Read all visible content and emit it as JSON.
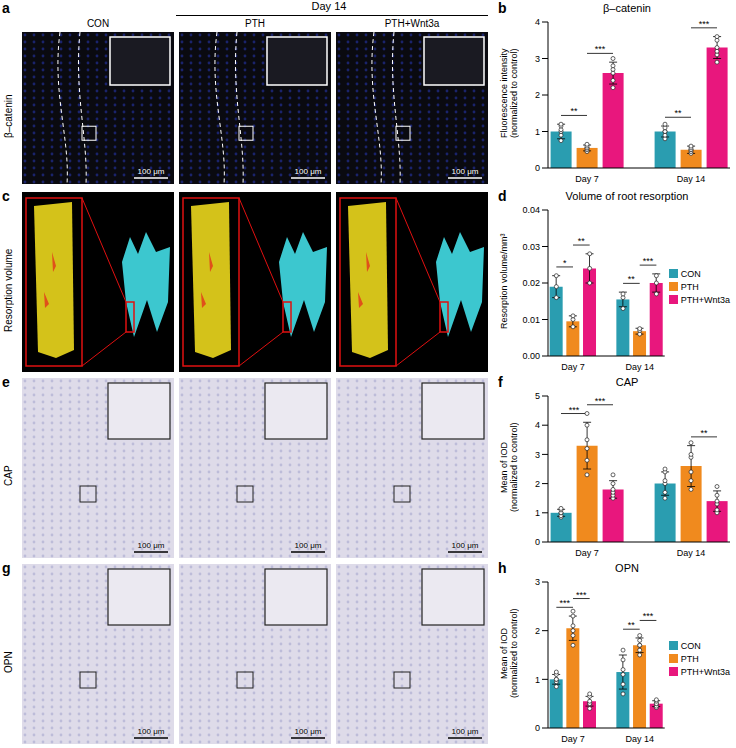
{
  "figure": {
    "panel_labels": [
      "a",
      "b",
      "c",
      "d",
      "e",
      "f",
      "g",
      "h"
    ],
    "header": "Day 14",
    "columns": [
      "CON",
      "PTH",
      "PTH+Wnt3a"
    ],
    "rows": [
      {
        "label": "β–catenin",
        "scale_bar": "100 μm"
      },
      {
        "label": "Resorption volume"
      },
      {
        "label": "CAP",
        "scale_bar": "100 μm"
      },
      {
        "label": "OPN",
        "scale_bar": "100 μm"
      }
    ]
  },
  "chart_data": [
    {
      "type": "bar",
      "title": "β–catenin",
      "y_label": "Fluorescence intensity\n(normalized to control)",
      "categories": [
        "Day 7",
        "Day 14"
      ],
      "ylim": [
        0,
        4
      ],
      "yticks": [
        0,
        1,
        2,
        3,
        4
      ],
      "series": [
        {
          "name": "CON",
          "color": "#2a9db0",
          "values": [
            1.0,
            1.0
          ],
          "errors": [
            0.2,
            0.15
          ],
          "points": [
            [
              0.75,
              0.9,
              1.0,
              1.05,
              1.15,
              1.2
            ],
            [
              0.8,
              0.9,
              1.0,
              1.0,
              1.1,
              1.2
            ]
          ]
        },
        {
          "name": "PTH",
          "color": "#f08a1e",
          "values": [
            0.55,
            0.5
          ],
          "errors": [
            0.08,
            0.1
          ],
          "points": [
            [
              0.45,
              0.5,
              0.55,
              0.55,
              0.6,
              0.65
            ],
            [
              0.4,
              0.45,
              0.5,
              0.5,
              0.55,
              0.6
            ]
          ]
        },
        {
          "name": "PTH+Wnt3a",
          "color": "#e8177d",
          "values": [
            2.6,
            3.3
          ],
          "errors": [
            0.3,
            0.3
          ],
          "points": [
            [
              2.2,
              2.4,
              2.6,
              2.7,
              2.8,
              3.0
            ],
            [
              2.9,
              3.1,
              3.2,
              3.3,
              3.5,
              3.6
            ]
          ]
        }
      ],
      "significance": [
        {
          "category": "Day 7",
          "from": "CON",
          "to": "PTH",
          "label": "**"
        },
        {
          "category": "Day 7",
          "from": "PTH",
          "to": "PTH+Wnt3a",
          "label": "***"
        },
        {
          "category": "Day 14",
          "from": "CON",
          "to": "PTH",
          "label": "**"
        },
        {
          "category": "Day 14",
          "from": "PTH",
          "to": "PTH+Wnt3a",
          "label": "***"
        }
      ]
    },
    {
      "type": "bar",
      "title": "Volume of root resorption",
      "y_label": "Resorption volume/mm³",
      "legend": "right",
      "categories": [
        "Day 7",
        "Day 14"
      ],
      "ylim": [
        0,
        0.04
      ],
      "yticks": [
        {
          "value": 0,
          "label": "0.00"
        },
        {
          "value": 0.01,
          "label": "0.01"
        },
        {
          "value": 0.02,
          "label": "0.02"
        },
        {
          "value": 0.03,
          "label": "0.03"
        },
        {
          "value": 0.04,
          "label": "0.04"
        }
      ],
      "series": [
        {
          "name": "CON",
          "color": "#2a9db0",
          "values": [
            0.019,
            0.0155
          ],
          "errors": [
            0.003,
            0.002
          ],
          "points": [
            [
              0.016,
              0.019,
              0.022
            ],
            [
              0.013,
              0.016,
              0.017
            ]
          ]
        },
        {
          "name": "PTH",
          "color": "#f08a1e",
          "values": [
            0.0095,
            0.0068
          ],
          "errors": [
            0.0015,
            0.0008
          ],
          "points": [
            [
              0.008,
              0.01,
              0.011
            ],
            [
              0.006,
              0.007,
              0.0075
            ]
          ]
        },
        {
          "name": "PTH+Wnt3a",
          "color": "#e8177d",
          "values": [
            0.024,
            0.02
          ],
          "errors": [
            0.004,
            0.0025
          ],
          "points": [
            [
              0.02,
              0.024,
              0.028
            ],
            [
              0.017,
              0.02,
              0.022
            ]
          ]
        }
      ],
      "significance": [
        {
          "category": "Day 7",
          "from": "CON",
          "to": "PTH",
          "label": "*"
        },
        {
          "category": "Day 7",
          "from": "PTH",
          "to": "PTH+Wnt3a",
          "label": "**"
        },
        {
          "category": "Day 14",
          "from": "CON",
          "to": "PTH",
          "label": "**"
        },
        {
          "category": "Day 14",
          "from": "PTH",
          "to": "PTH+Wnt3a",
          "label": "***"
        }
      ]
    },
    {
      "type": "bar",
      "title": "CAP",
      "y_label": "Mean of IOD\n(normalized to control)",
      "categories": [
        "Day 7",
        "Day 14"
      ],
      "ylim": [
        0,
        5
      ],
      "yticks": [
        0,
        1,
        2,
        3,
        4,
        5
      ],
      "series": [
        {
          "name": "CON",
          "color": "#2a9db0",
          "values": [
            1.0,
            2.0
          ],
          "errors": [
            0.12,
            0.4
          ],
          "points": [
            [
              0.85,
              0.9,
              1.0,
              1.0,
              1.1,
              1.15
            ],
            [
              1.5,
              1.7,
              2.0,
              2.1,
              2.4,
              2.5
            ]
          ]
        },
        {
          "name": "PTH",
          "color": "#f08a1e",
          "values": [
            3.3,
            2.6
          ],
          "errors": [
            0.8,
            0.7
          ],
          "points": [
            [
              2.3,
              2.8,
              3.2,
              3.5,
              4.0,
              4.4
            ],
            [
              1.8,
              2.1,
              2.4,
              2.9,
              3.0,
              3.4
            ]
          ]
        },
        {
          "name": "PTH+Wnt3a",
          "color": "#e8177d",
          "values": [
            1.8,
            1.4
          ],
          "errors": [
            0.3,
            0.35
          ],
          "points": [
            [
              1.5,
              1.6,
              1.7,
              1.8,
              2.0,
              2.3
            ],
            [
              1.0,
              1.1,
              1.3,
              1.4,
              1.6,
              1.9
            ]
          ]
        }
      ],
      "significance": [
        {
          "category": "Day 7",
          "from": "CON",
          "to": "PTH",
          "label": "***"
        },
        {
          "category": "Day 7",
          "from": "PTH",
          "to": "PTH+Wnt3a",
          "label": "***"
        },
        {
          "category": "Day 14",
          "from": "PTH",
          "to": "PTH+Wnt3a",
          "label": "**"
        }
      ]
    },
    {
      "type": "bar",
      "title": "OPN",
      "y_label": "Mean of IOD\n(normalized to control)",
      "legend": "right",
      "categories": [
        "Day 7",
        "Day 14"
      ],
      "ylim": [
        0,
        3
      ],
      "yticks": [
        0,
        1,
        2,
        3
      ],
      "series": [
        {
          "name": "CON",
          "color": "#2a9db0",
          "values": [
            1.0,
            1.15
          ],
          "errors": [
            0.1,
            0.35
          ],
          "points": [
            [
              0.85,
              0.95,
              1.0,
              1.0,
              1.1,
              1.15
            ],
            [
              0.7,
              0.9,
              1.1,
              1.2,
              1.4,
              1.6
            ]
          ]
        },
        {
          "name": "PTH",
          "color": "#f08a1e",
          "values": [
            2.05,
            1.7
          ],
          "errors": [
            0.25,
            0.15
          ],
          "points": [
            [
              1.7,
              1.9,
              2.0,
              2.1,
              2.3,
              2.4
            ],
            [
              1.5,
              1.6,
              1.7,
              1.7,
              1.8,
              1.9
            ]
          ]
        },
        {
          "name": "PTH+Wnt3a",
          "color": "#e8177d",
          "values": [
            0.55,
            0.5
          ],
          "errors": [
            0.1,
            0.06
          ],
          "points": [
            [
              0.4,
              0.5,
              0.5,
              0.55,
              0.65,
              0.7
            ],
            [
              0.42,
              0.45,
              0.5,
              0.5,
              0.55,
              0.58
            ]
          ]
        }
      ],
      "significance": [
        {
          "category": "Day 7",
          "from": "CON",
          "to": "PTH",
          "label": "***"
        },
        {
          "category": "Day 7",
          "from": "PTH",
          "to": "PTH+Wnt3a",
          "label": "***"
        },
        {
          "category": "Day 14",
          "from": "CON",
          "to": "PTH",
          "label": "**"
        },
        {
          "category": "Day 14",
          "from": "PTH",
          "to": "PTH+Wnt3a",
          "label": "***"
        }
      ]
    }
  ]
}
